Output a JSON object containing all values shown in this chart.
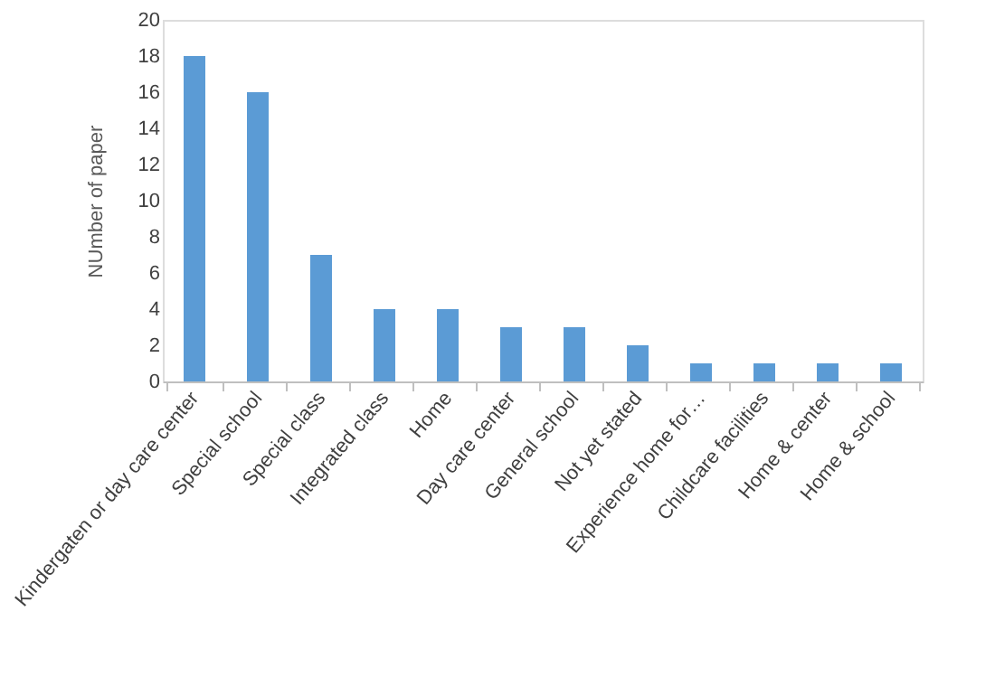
{
  "chart_data": {
    "type": "bar",
    "ylabel": "NUmber of paper",
    "categories": [
      "Kindergaten or day care center",
      "Special school",
      "Special class",
      "Integrated class",
      "Home",
      "Day care center",
      "General school",
      "Not yet stated",
      "Experience home for…",
      "Childcare facilities",
      "Home & center",
      "Home & school"
    ],
    "values": [
      18,
      16,
      7,
      4,
      4,
      3,
      3,
      2,
      1,
      1,
      1,
      1
    ],
    "color": "#5b9bd5",
    "ylim": [
      0,
      20
    ],
    "yticks": [
      0,
      2,
      4,
      6,
      8,
      10,
      12,
      14,
      16,
      18,
      20
    ],
    "grid": false
  }
}
